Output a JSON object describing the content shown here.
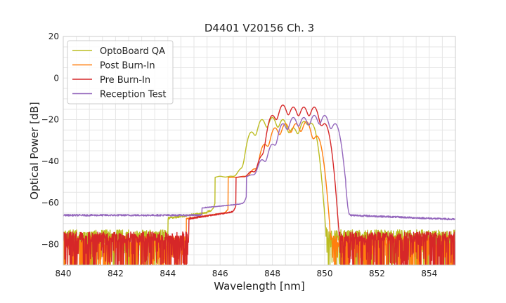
{
  "chart_data": {
    "type": "line",
    "title": "D4401 V20156 Ch. 3",
    "xlabel": "Wavelength [nm]",
    "ylabel": "Optical Power [dB]",
    "xlim": [
      840,
      855
    ],
    "ylim": [
      -90,
      20
    ],
    "xticks": [
      840,
      842,
      844,
      846,
      848,
      850,
      852,
      854
    ],
    "yticks": [
      -80,
      -60,
      -40,
      -20,
      0,
      20
    ],
    "xtick_labels": [
      "840",
      "842",
      "844",
      "846",
      "848",
      "850",
      "852",
      "854"
    ],
    "ytick_labels": [
      "−80",
      "−60",
      "−40",
      "−20",
      "0",
      "20"
    ],
    "x_minor_step": 0.5,
    "y_minor_step": 5,
    "grid": true,
    "legend_position": "top-left",
    "series": [
      {
        "name": "OptoBoard QA",
        "color": "#bcbd22",
        "noise_floor_dB": -73,
        "noise_region_nm": [
          840.0,
          845.0
        ],
        "modes": [
          {
            "x": 846.0,
            "y": -56
          },
          {
            "x": 846.4,
            "y": -56
          },
          {
            "x": 846.8,
            "y": -46
          },
          {
            "x": 847.2,
            "y": -26
          },
          {
            "x": 847.6,
            "y": -20
          },
          {
            "x": 848.0,
            "y": -19
          },
          {
            "x": 848.4,
            "y": -20
          },
          {
            "x": 848.8,
            "y": -24
          },
          {
            "x": 849.2,
            "y": -21
          },
          {
            "x": 849.5,
            "y": -22
          }
        ],
        "cutoff_nm": [
          845.5,
          849.8
        ]
      },
      {
        "name": "Post Burn-In",
        "color": "#ff7f0e",
        "noise_floor_dB": -76,
        "noise_region_nm": [
          840.0,
          846.0
        ],
        "modes": [
          {
            "x": 846.5,
            "y": -62
          },
          {
            "x": 846.9,
            "y": -56
          },
          {
            "x": 847.3,
            "y": -46
          },
          {
            "x": 847.7,
            "y": -32
          },
          {
            "x": 848.1,
            "y": -24
          },
          {
            "x": 848.5,
            "y": -22
          },
          {
            "x": 848.9,
            "y": -22
          },
          {
            "x": 849.3,
            "y": -21
          },
          {
            "x": 849.7,
            "y": -28
          }
        ],
        "cutoff_nm": [
          846.2,
          849.9
        ]
      },
      {
        "name": "Pre Burn-In",
        "color": "#d62728",
        "noise_floor_dB": -74,
        "noise_region_nm": [
          840.0,
          855.0
        ],
        "modes": [
          {
            "x": 846.8,
            "y": -58
          },
          {
            "x": 847.2,
            "y": -48
          },
          {
            "x": 847.6,
            "y": -38
          },
          {
            "x": 848.0,
            "y": -18
          },
          {
            "x": 848.4,
            "y": -13
          },
          {
            "x": 848.8,
            "y": -14
          },
          {
            "x": 849.2,
            "y": -14
          },
          {
            "x": 849.6,
            "y": -14
          },
          {
            "x": 850.0,
            "y": -22
          }
        ],
        "cutoff_nm": [
          846.3,
          850.3
        ]
      },
      {
        "name": "Reception Test",
        "color": "#9467bd",
        "noise_floor_dB": -66,
        "noise_region_nm": [
          840.0,
          855.0
        ],
        "modes": [
          {
            "x": 847.2,
            "y": -53
          },
          {
            "x": 847.6,
            "y": -40
          },
          {
            "x": 848.0,
            "y": -32
          },
          {
            "x": 848.4,
            "y": -22
          },
          {
            "x": 848.8,
            "y": -19
          },
          {
            "x": 849.2,
            "y": -19
          },
          {
            "x": 849.6,
            "y": -18
          },
          {
            "x": 850.0,
            "y": -18
          },
          {
            "x": 850.4,
            "y": -22
          }
        ],
        "cutoff_nm": [
          846.8,
          850.8
        ]
      }
    ]
  }
}
